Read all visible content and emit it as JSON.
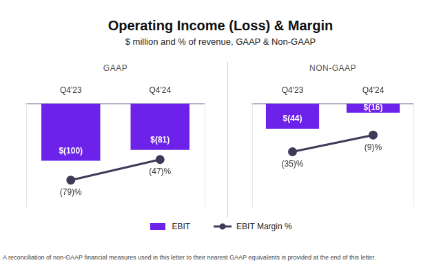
{
  "title": "Operating Income (Loss) & Margin",
  "subtitle": "$ million and % of revenue, GAAP & Non-GAAP",
  "footnote": "A reconciliation of non-GAAP financial measures used in this letter to their nearest GAAP equivalents is provided at the end of this letter.",
  "chart_data": [
    {
      "type": "bar",
      "title": "GAAP",
      "categories": [
        "Q4'23",
        "Q4'24"
      ],
      "series": [
        {
          "name": "EBIT",
          "type": "bar",
          "color": "#6c22e8",
          "values": [
            -100,
            -81
          ],
          "value_labels": [
            "$(100)",
            "$(81)"
          ]
        },
        {
          "name": "EBIT Margin %",
          "type": "line",
          "color": "#3d3b57",
          "marker": "circle",
          "line_style": "solid",
          "axis": "y2",
          "values": [
            -79,
            -47
          ],
          "value_labels": [
            "(79)%",
            "(47)%"
          ]
        }
      ],
      "ylim": [
        -180,
        0
      ],
      "y2lim": [
        -120,
        40
      ],
      "grid": false,
      "legend": "bottom",
      "data_labels": true,
      "tick_labels": "x"
    },
    {
      "type": "bar",
      "title": "NON-GAAP",
      "categories": [
        "Q4'23",
        "Q4'24"
      ],
      "series": [
        {
          "name": "EBIT",
          "type": "bar",
          "color": "#6c22e8",
          "values": [
            -44,
            -16
          ],
          "value_labels": [
            "$(44)",
            "$(16)"
          ]
        },
        {
          "name": "EBIT Margin %",
          "type": "line",
          "color": "#3d3b57",
          "marker": "circle",
          "line_style": "solid",
          "axis": "y2",
          "values": [
            -35,
            -9
          ],
          "value_labels": [
            "(35)%",
            "(9)%"
          ]
        }
      ],
      "ylim": [
        -180,
        0
      ],
      "y2lim": [
        -120,
        40
      ],
      "grid": false,
      "legend": "bottom",
      "data_labels": true,
      "tick_labels": "x"
    }
  ]
}
